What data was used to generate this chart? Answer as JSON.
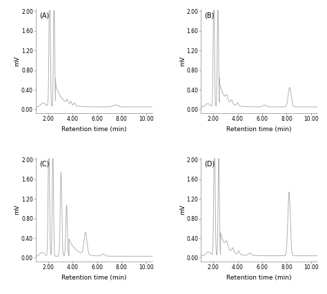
{
  "panels": [
    "(A)",
    "(B)",
    "(C)",
    "(D)"
  ],
  "xlabel": "Retention time (min)",
  "ylabel": "mV",
  "xlim": [
    1.0,
    10.5
  ],
  "ylim": [
    -0.08,
    2.05
  ],
  "yticks": [
    0.0,
    0.4,
    0.8,
    1.2,
    1.6,
    2.0
  ],
  "xticks": [
    2.0,
    4.0,
    6.0,
    8.0,
    10.0
  ],
  "line_color": "#b0b0b0",
  "line_width": 0.7,
  "bg_color": "#ffffff",
  "label_fontsize": 6.5,
  "tick_fontsize": 5.5,
  "panel_label_fontsize": 7
}
